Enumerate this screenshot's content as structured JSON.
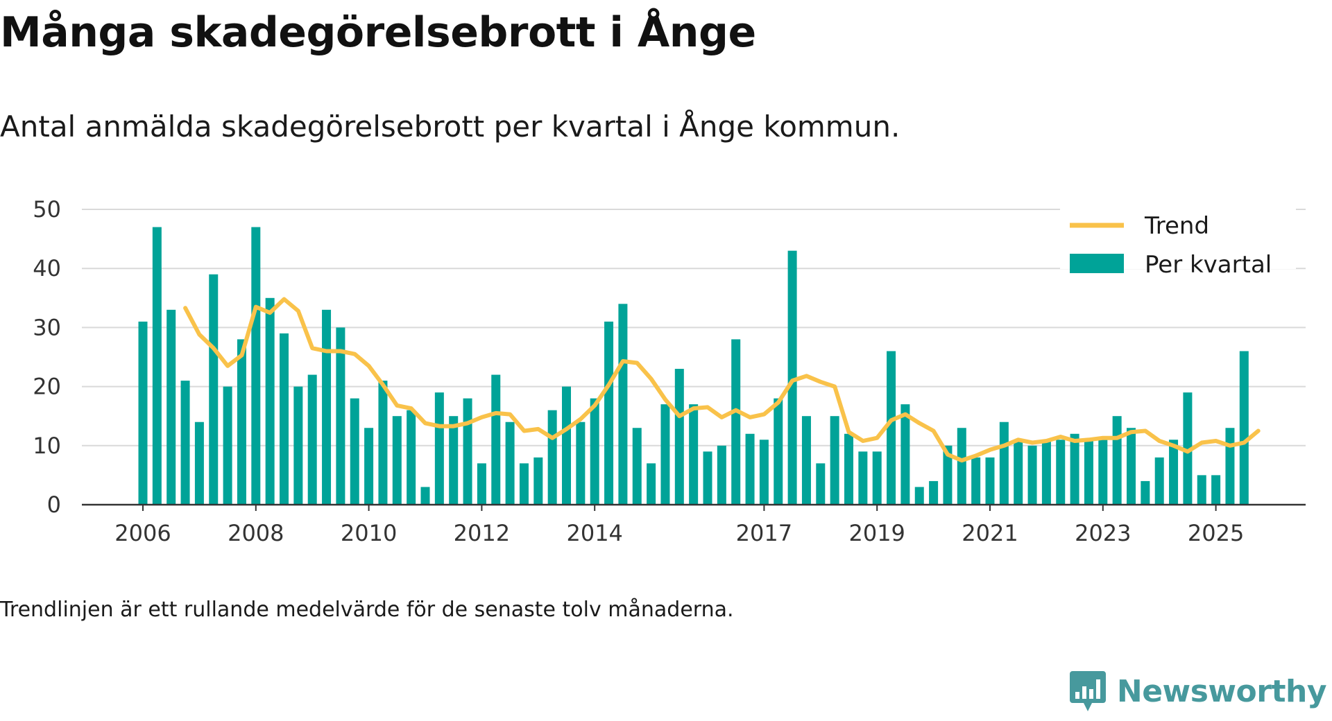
{
  "header": {
    "title": "Många skadegörelsebrott i Ånge",
    "subtitle": "Antal anmälda skadegörelsebrott per kvartal i Ånge kommun."
  },
  "footer": {
    "note": "Trendlinjen är ett rullande medelvärde för de senaste tolv månaderna.",
    "brand": "Newsworthy"
  },
  "colors": {
    "bar": "#00a398",
    "trend": "#f9c24a",
    "grid": "#d9d9d9",
    "axis": "#333333",
    "brand": "#47999d"
  },
  "chart_data": {
    "type": "bar",
    "title": "Många skadegörelsebrott i Ånge",
    "subtitle": "Antal anmälda skadegörelsebrott per kvartal i Ånge kommun.",
    "xlabel": "",
    "ylabel": "",
    "ylim": [
      0,
      50
    ],
    "yticks": [
      0,
      10,
      20,
      30,
      40,
      50
    ],
    "xticks": [
      {
        "label": "2006",
        "index": 0
      },
      {
        "label": "2008",
        "index": 8
      },
      {
        "label": "2010",
        "index": 16
      },
      {
        "label": "2012",
        "index": 24
      },
      {
        "label": "2014",
        "index": 32
      },
      {
        "label": "2017",
        "index": 44
      },
      {
        "label": "2019",
        "index": 52
      },
      {
        "label": "2021",
        "index": 60
      },
      {
        "label": "2023",
        "index": 68
      },
      {
        "label": "2025",
        "index": 76
      }
    ],
    "grid": true,
    "legend_position": "top-right",
    "series": [
      {
        "name": "Per kvartal",
        "type": "bar",
        "values": [
          31,
          47,
          33,
          21,
          14,
          39,
          20,
          28,
          47,
          35,
          29,
          20,
          22,
          33,
          30,
          18,
          13,
          21,
          15,
          16,
          3,
          19,
          15,
          18,
          7,
          22,
          14,
          7,
          8,
          16,
          20,
          14,
          18,
          31,
          34,
          13,
          7,
          17,
          23,
          17,
          9,
          10,
          28,
          12,
          11,
          18,
          43,
          15,
          7,
          15,
          12,
          9,
          9,
          26,
          17,
          3,
          4,
          10,
          13,
          8,
          8,
          14,
          11,
          10,
          11,
          11,
          12,
          11,
          11,
          15,
          13,
          4,
          8,
          11,
          19,
          5,
          5,
          13,
          26
        ]
      },
      {
        "name": "Trend",
        "type": "line",
        "start_index": 3,
        "values": [
          33.3,
          28.8,
          26.5,
          23.5,
          25.3,
          33.5,
          32.5,
          34.8,
          32.8,
          26.5,
          26.0,
          26.0,
          25.5,
          23.5,
          20.3,
          16.8,
          16.3,
          13.8,
          13.3,
          13.3,
          13.8,
          14.8,
          15.5,
          15.3,
          12.5,
          12.8,
          11.3,
          12.8,
          14.5,
          16.8,
          20.3,
          24.3,
          24.0,
          21.3,
          17.8,
          15.0,
          16.3,
          16.5,
          14.8,
          16.0,
          14.8,
          15.3,
          17.3,
          21.0,
          21.8,
          20.8,
          20.0,
          12.3,
          10.8,
          11.3,
          14.3,
          15.3,
          13.8,
          12.5,
          8.5,
          7.5,
          8.3,
          9.3,
          10.0,
          11.0,
          10.5,
          10.8,
          11.5,
          10.8,
          11.0,
          11.3,
          11.3,
          12.3,
          12.5,
          10.8,
          10.0,
          9.0,
          10.5,
          10.8,
          10.0,
          10.5,
          12.5
        ]
      }
    ]
  }
}
